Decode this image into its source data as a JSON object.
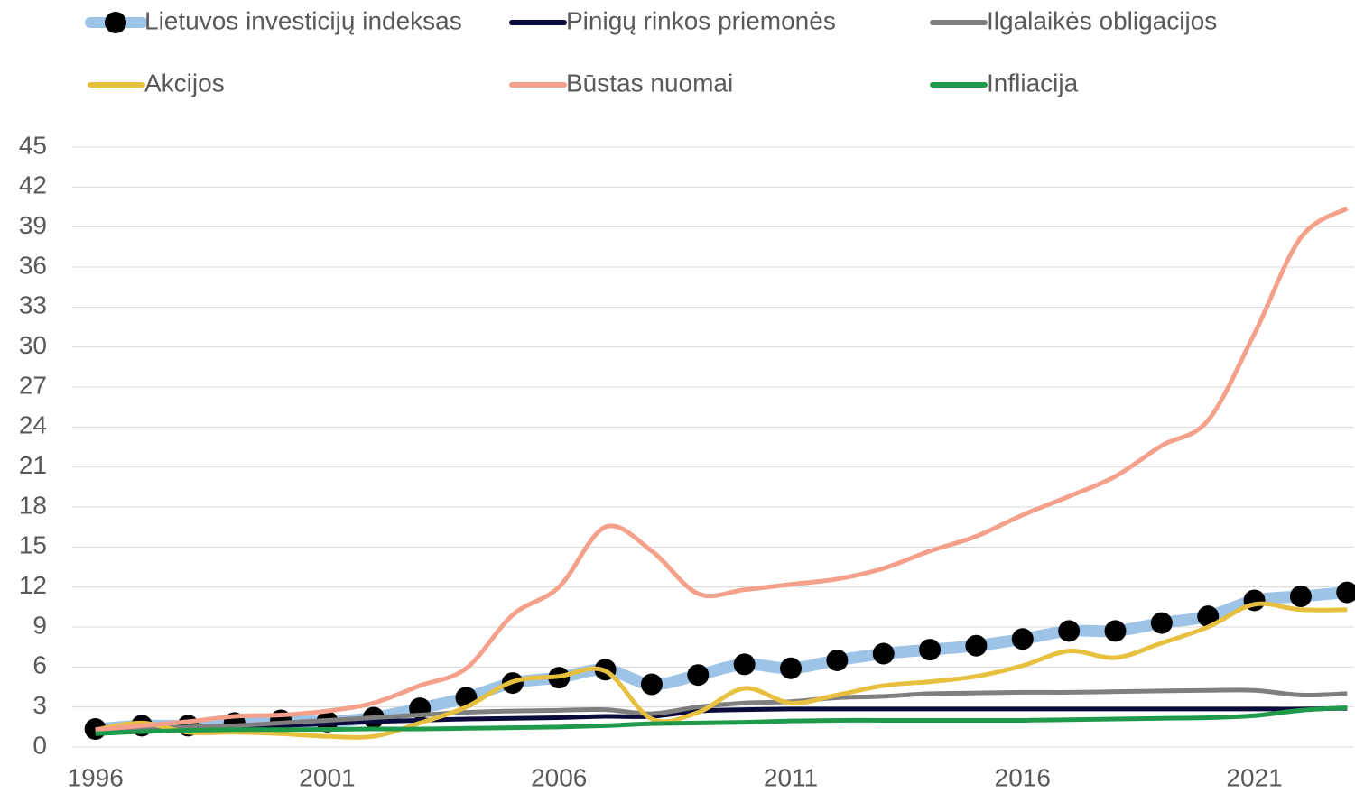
{
  "chart_data": {
    "type": "line",
    "x": [
      1996,
      1997,
      1998,
      1999,
      2000,
      2001,
      2002,
      2003,
      2004,
      2005,
      2006,
      2007,
      2008,
      2009,
      2010,
      2011,
      2012,
      2013,
      2014,
      2015,
      2016,
      2017,
      2018,
      2019,
      2020,
      2021,
      2022,
      2023
    ],
    "series": [
      {
        "name": "Lietuvos investicijų indeksas",
        "color": "#9dc3e6",
        "marker": true,
        "values": [
          1.35,
          1.6,
          1.6,
          1.8,
          2.0,
          1.9,
          2.2,
          2.9,
          3.7,
          4.8,
          5.2,
          5.8,
          4.7,
          5.4,
          6.2,
          5.9,
          6.5,
          7.0,
          7.3,
          7.6,
          8.1,
          8.7,
          8.7,
          9.3,
          9.8,
          11.0,
          11.3,
          11.6
        ]
      },
      {
        "name": "Pinigų rinkos priemonės",
        "color": "#0a0a3c",
        "values": [
          1.0,
          1.2,
          1.35,
          1.5,
          1.6,
          1.75,
          1.9,
          2.0,
          2.1,
          2.15,
          2.2,
          2.3,
          2.3,
          2.7,
          2.8,
          2.85,
          2.85,
          2.85,
          2.85,
          2.85,
          2.85,
          2.85,
          2.85,
          2.85,
          2.85,
          2.85,
          2.85,
          2.9
        ]
      },
      {
        "name": "Ilgalaikės obligacijos",
        "color": "#7f7f7f",
        "values": [
          1.3,
          1.4,
          1.5,
          1.6,
          1.8,
          2.0,
          2.2,
          2.4,
          2.6,
          2.7,
          2.75,
          2.8,
          2.5,
          3.0,
          3.3,
          3.4,
          3.7,
          3.8,
          4.0,
          4.05,
          4.1,
          4.1,
          4.15,
          4.2,
          4.25,
          4.25,
          3.9,
          4.0
        ]
      },
      {
        "name": "Akcijos",
        "color": "#e8c040",
        "values": [
          1.3,
          1.8,
          1.1,
          1.1,
          1.0,
          0.8,
          0.8,
          1.8,
          3.0,
          4.9,
          5.3,
          5.7,
          2.1,
          2.6,
          4.4,
          3.3,
          3.9,
          4.6,
          4.9,
          5.3,
          6.1,
          7.2,
          6.7,
          7.8,
          9.0,
          10.7,
          10.3,
          10.3
        ]
      },
      {
        "name": "Būstas nuomai",
        "color": "#f4a08a",
        "values": [
          1.3,
          1.6,
          1.9,
          2.3,
          2.4,
          2.7,
          3.3,
          4.6,
          5.9,
          9.9,
          12.0,
          16.5,
          14.7,
          11.5,
          11.8,
          12.2,
          12.6,
          13.4,
          14.7,
          15.8,
          17.4,
          18.8,
          20.3,
          22.6,
          24.5,
          31.0,
          38.2,
          40.4
        ]
      },
      {
        "name": "Infliacija",
        "color": "#1e9a4a",
        "values": [
          1.0,
          1.15,
          1.25,
          1.3,
          1.3,
          1.32,
          1.35,
          1.35,
          1.4,
          1.45,
          1.5,
          1.6,
          1.75,
          1.8,
          1.85,
          1.95,
          2.0,
          2.0,
          2.0,
          2.0,
          2.0,
          2.05,
          2.1,
          2.15,
          2.2,
          2.35,
          2.75,
          2.95
        ]
      }
    ],
    "xlim": [
      1995.5,
      2023.15
    ],
    "xticks": [
      1996,
      2001,
      2006,
      2011,
      2016,
      2021
    ],
    "ylim": [
      0,
      45
    ],
    "yticks": [
      0,
      3,
      6,
      9,
      12,
      15,
      18,
      21,
      24,
      27,
      30,
      33,
      36,
      39,
      42,
      45
    ],
    "grid": true,
    "legend": "top"
  }
}
